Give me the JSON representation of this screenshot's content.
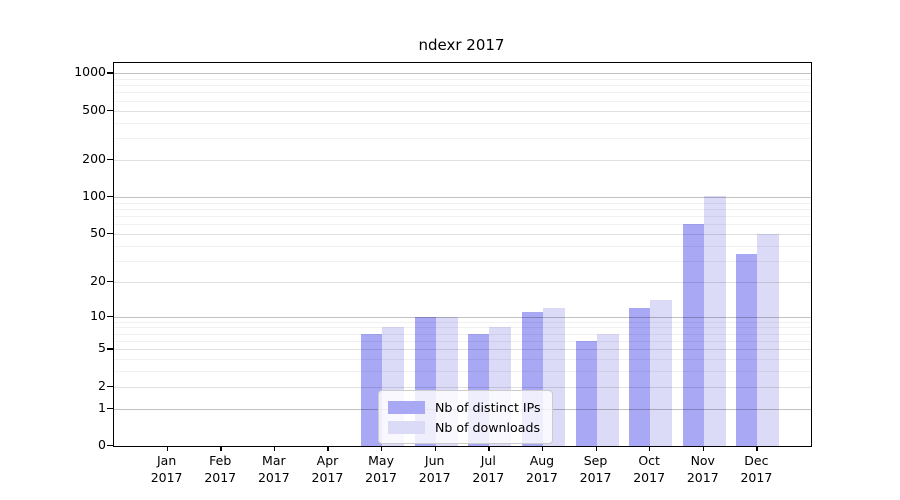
{
  "chart_data": {
    "type": "bar",
    "title": "ndexr 2017",
    "year_label": "2017",
    "categories": [
      "Jan",
      "Feb",
      "Mar",
      "Apr",
      "May",
      "Jun",
      "Jul",
      "Aug",
      "Sep",
      "Oct",
      "Nov",
      "Dec"
    ],
    "series": [
      {
        "name": "Nb of distinct IPs",
        "color": "#a8a8f5",
        "values": [
          0,
          0,
          0,
          0,
          7,
          10,
          7,
          11,
          6,
          12,
          60,
          34
        ]
      },
      {
        "name": "Nb of downloads",
        "color": "#dbdbf8",
        "values": [
          0,
          0,
          0,
          0,
          8,
          10,
          8,
          12,
          7,
          14,
          102,
          50
        ]
      }
    ],
    "y_axis": {
      "scale": "log1p",
      "tick_values": [
        1000,
        500,
        200,
        100,
        50,
        20,
        10,
        5,
        2,
        1,
        0
      ],
      "tick_labels": [
        "1000",
        "500",
        "200",
        "100",
        "50",
        "20",
        "10",
        "5",
        "2",
        "1",
        "0"
      ],
      "ylim": [
        0,
        1210
      ]
    },
    "legend": {
      "position": "lower center",
      "entries": [
        "Nb of distinct IPs",
        "Nb of downloads"
      ]
    },
    "grid": true
  }
}
